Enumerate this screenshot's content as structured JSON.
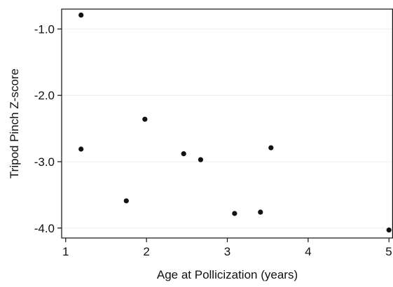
{
  "chart_data": {
    "type": "scatter",
    "title": "",
    "xlabel": "Age at Pollicization (years)",
    "ylabel": "Tripod Pinch Z-score",
    "xlim": [
      0.95,
      5.05
    ],
    "ylim": [
      -4.15,
      -0.7
    ],
    "xticks": [
      1,
      2,
      3,
      4,
      5
    ],
    "xtick_labels": [
      "1",
      "2",
      "3",
      "4",
      "5"
    ],
    "yticks": [
      -1.0,
      -2.0,
      -3.0,
      -4.0
    ],
    "ytick_labels": [
      "-1.0",
      "-2.0",
      "-3.0",
      "-4.0"
    ],
    "grid": "horizontal",
    "legend": "none",
    "marker_color": "#111111",
    "gridline_color": "#ececec",
    "series": [
      {
        "points": [
          {
            "x": 1.19,
            "y": -0.79
          },
          {
            "x": 1.19,
            "y": -2.81
          },
          {
            "x": 1.75,
            "y": -3.59
          },
          {
            "x": 1.98,
            "y": -2.36
          },
          {
            "x": 2.46,
            "y": -2.88
          },
          {
            "x": 2.67,
            "y": -2.97
          },
          {
            "x": 3.09,
            "y": -3.78
          },
          {
            "x": 3.41,
            "y": -3.76
          },
          {
            "x": 3.54,
            "y": -2.79
          },
          {
            "x": 5.0,
            "y": -4.03
          }
        ]
      }
    ]
  }
}
